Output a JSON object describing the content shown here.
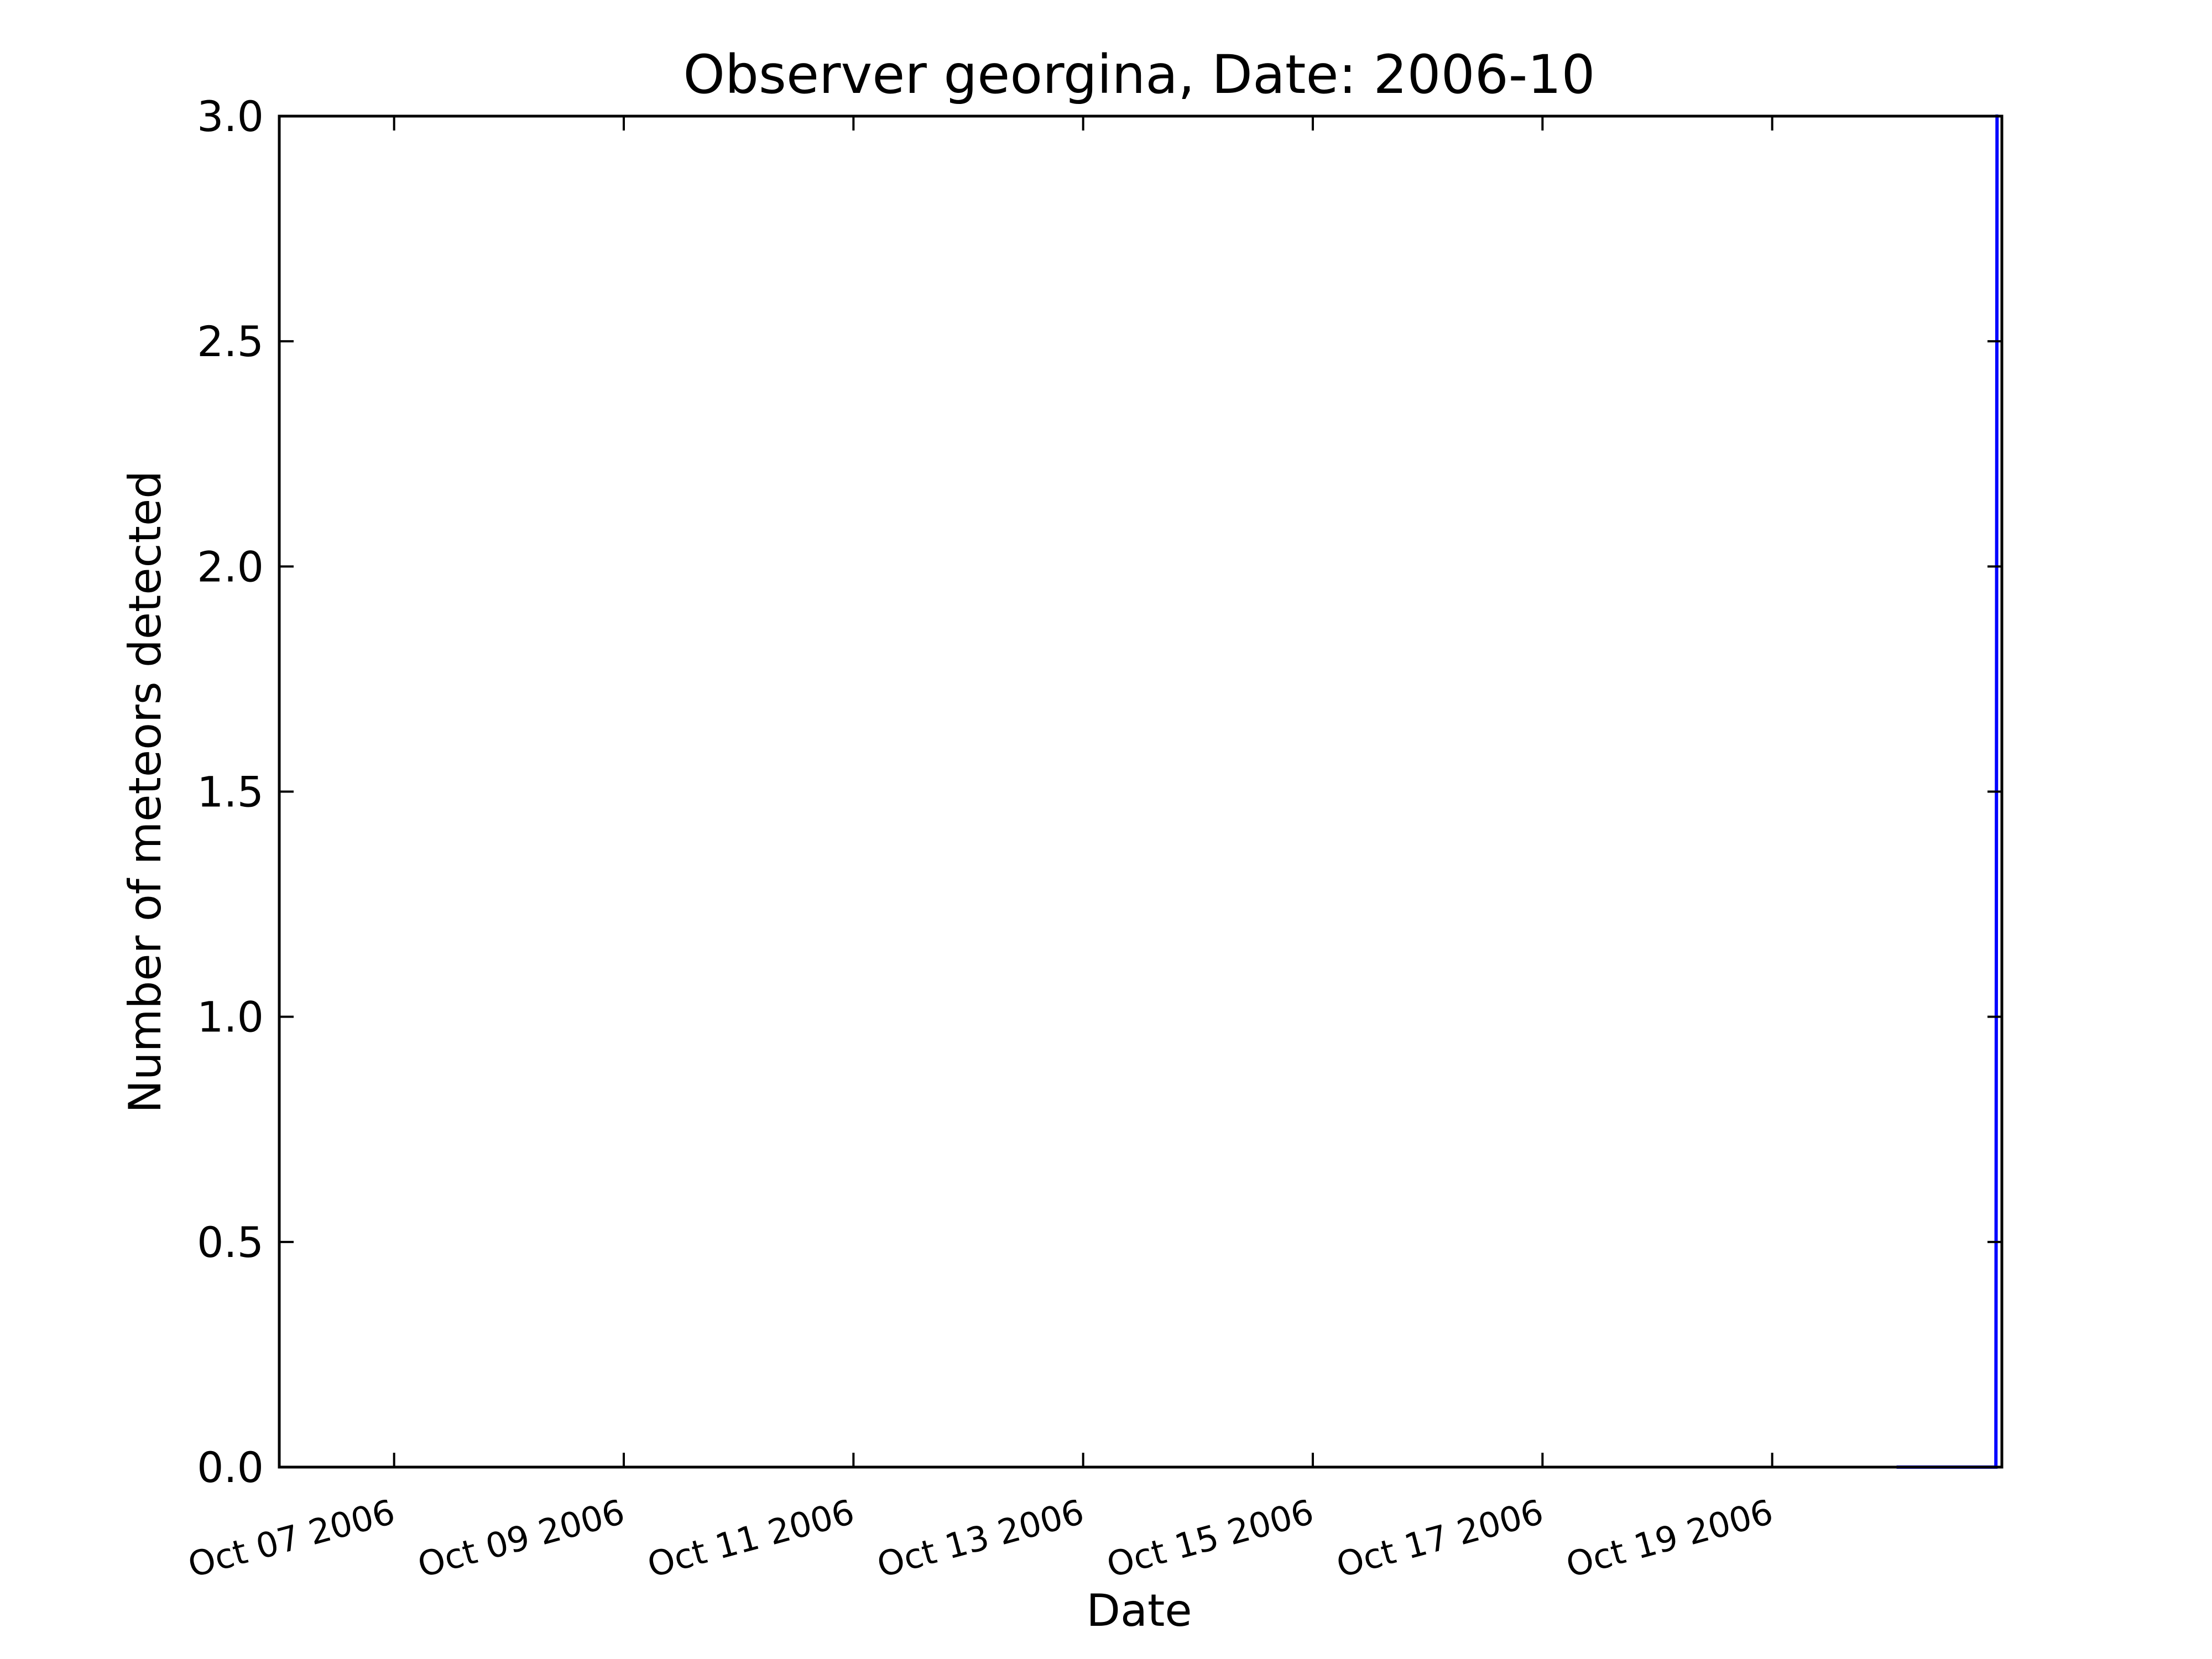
{
  "chart_data": {
    "type": "line",
    "title": "Observer georgina, Date: 2006-10",
    "xlabel": "Date",
    "ylabel": "Number of meteors detected",
    "xlim": [
      "2006-10-06",
      "2006-10-21"
    ],
    "ylim": [
      0,
      3
    ],
    "yticks": [
      0.0,
      0.5,
      1.0,
      1.5,
      2.0,
      2.5,
      3.0
    ],
    "ytick_labels": [
      "0.0",
      "0.5",
      "1.0",
      "1.5",
      "2.0",
      "2.5",
      "3.0"
    ],
    "xticks": [
      "2006-10-07",
      "2006-10-09",
      "2006-10-11",
      "2006-10-13",
      "2006-10-15",
      "2006-10-17",
      "2006-10-19"
    ],
    "xtick_labels": [
      "Oct 07 2006",
      "Oct 09 2006",
      "Oct 11 2006",
      "Oct 13 2006",
      "Oct 15 2006",
      "Oct 17 2006",
      "Oct 19 2006"
    ],
    "grid": false,
    "series": [
      {
        "color": "#0000ff",
        "x": [
          "2006-10-20 02:00",
          "2006-10-20 22:45",
          "2006-10-20 23:00",
          "2006-10-20 23:15"
        ],
        "y": [
          0,
          0,
          3,
          3
        ]
      }
    ]
  }
}
